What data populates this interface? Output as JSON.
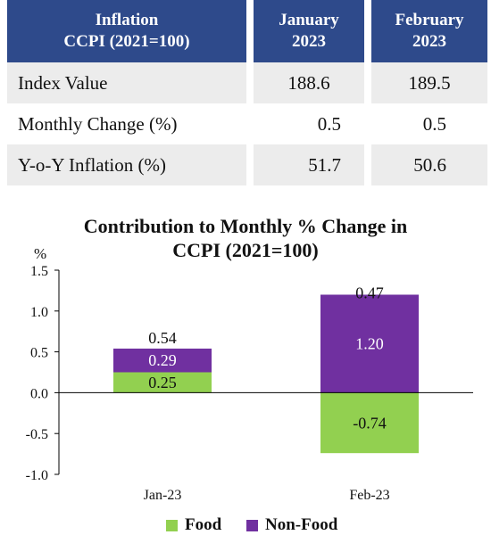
{
  "table": {
    "headers": [
      {
        "line1": "Inflation",
        "line2": "CCPI (2021=100)"
      },
      {
        "line1": "January",
        "line2": "2023"
      },
      {
        "line1": "February",
        "line2": "2023"
      }
    ],
    "rows": [
      {
        "label": "Index Value",
        "values": [
          "188.6",
          "189.5"
        ]
      },
      {
        "label": "Monthly Change (%)",
        "values": [
          "0.5",
          "0.5"
        ]
      },
      {
        "label": "Y-o-Y Inflation (%)",
        "values": [
          "51.7",
          "50.6"
        ]
      }
    ]
  },
  "chart_data": {
    "type": "bar",
    "stacked": true,
    "title_line1": "Contribution to Monthly % Change in",
    "title_line2": "CCPI (2021=100)",
    "ylabel": "%",
    "ylim": [
      -1.0,
      1.5
    ],
    "yticks": [
      "1.5",
      "1.0",
      "0.5",
      "0.0",
      "-0.5",
      "-1.0"
    ],
    "ytick_values": [
      1.5,
      1.0,
      0.5,
      0.0,
      -0.5,
      -1.0
    ],
    "categories": [
      "Jan-23",
      "Feb-23"
    ],
    "series": [
      {
        "name": "Food",
        "color": "#92d050",
        "values": [
          0.25,
          -0.74
        ],
        "labels": [
          "0.25",
          "-0.74"
        ]
      },
      {
        "name": "Non-Food",
        "color": "#7030a0",
        "values": [
          0.29,
          1.2
        ],
        "labels": [
          "0.29",
          "1.20"
        ]
      }
    ],
    "totals": [
      0.54,
      0.47
    ],
    "total_labels": [
      "0.54",
      "0.47"
    ],
    "legend_position": "bottom"
  }
}
